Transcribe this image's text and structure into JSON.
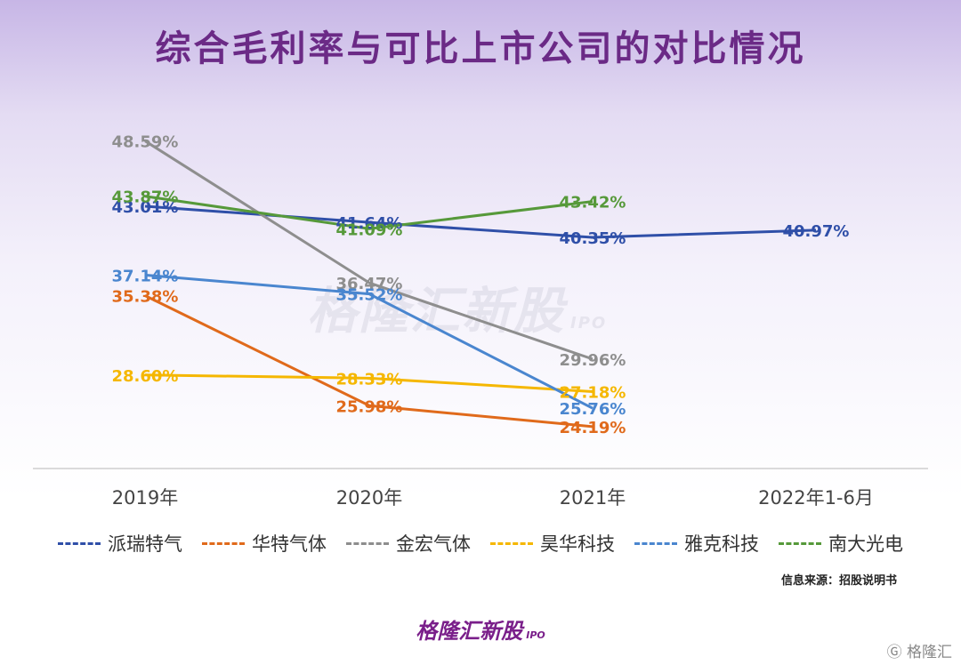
{
  "title": "综合毛利率与可比上市公司的对比情况",
  "watermark": "格隆汇新股",
  "watermark_suffix": "IPO",
  "source": "信息来源：招股说明书",
  "brand": "格隆汇新股",
  "brand_suffix": "IPO",
  "corner_logo": "格隆汇",
  "chart_data": {
    "type": "line",
    "categories": [
      "2019年",
      "2020年",
      "2021年",
      "2022年1-6月"
    ],
    "ylim": [
      20,
      50
    ],
    "grid": false,
    "legend_position": "bottom",
    "series": [
      {
        "name": "派瑞特气",
        "color": "#2f4fa8",
        "values": [
          43.01,
          41.64,
          40.35,
          40.97
        ],
        "labels": [
          "43.01%",
          "41.64%",
          "40.35%",
          "40.97%"
        ]
      },
      {
        "name": "华特气体",
        "color": "#e06a1b",
        "values": [
          35.38,
          25.98,
          24.19,
          null
        ],
        "labels": [
          "35.38%",
          "25.98%",
          "24.19%",
          ""
        ]
      },
      {
        "name": "金宏气体",
        "color": "#8e8e8e",
        "values": [
          48.59,
          36.47,
          29.96,
          null
        ],
        "labels": [
          "48.59%",
          "36.47%",
          "29.96%",
          ""
        ]
      },
      {
        "name": "昊华科技",
        "color": "#f5b700",
        "values": [
          28.6,
          28.33,
          27.18,
          null
        ],
        "labels": [
          "28.60%",
          "28.33%",
          "27.18%",
          ""
        ]
      },
      {
        "name": "雅克科技",
        "color": "#4a86cf",
        "values": [
          37.14,
          35.52,
          25.76,
          null
        ],
        "labels": [
          "37.14%",
          "35.52%",
          "25.76%",
          ""
        ]
      },
      {
        "name": "南大光电",
        "color": "#56993a",
        "values": [
          43.87,
          41.09,
          43.42,
          null
        ],
        "labels": [
          "43.87%",
          "41.09%",
          "43.42%",
          ""
        ]
      }
    ]
  }
}
